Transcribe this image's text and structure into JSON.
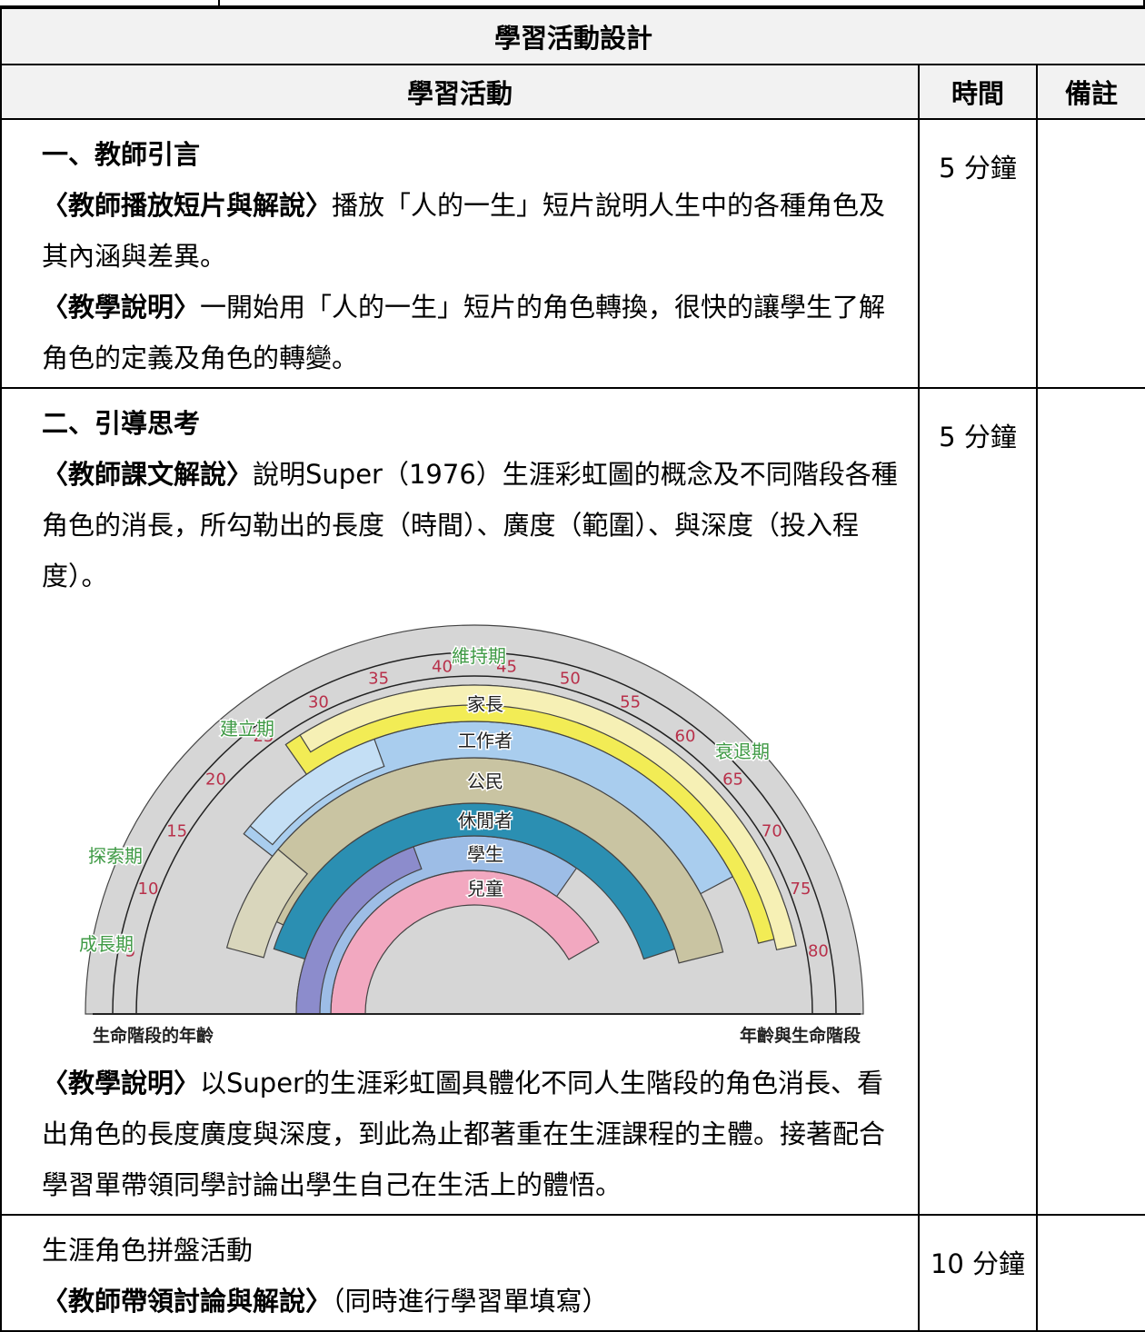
{
  "table": {
    "title": "學習活動設計",
    "headers": [
      "學習活動",
      "時間",
      "備註"
    ],
    "rows": [
      {
        "content": [
          {
            "bold": "一、教師引言"
          },
          {
            "bold": "〈教師播放短片與解說〉",
            "text": "播放「人的一生」短片說明人生中的各種角色及其內涵與差異。"
          },
          {
            "bold": "〈教學說明〉",
            "text": "一開始用「人的一生」短片的角色轉換，很快的讓學生了解角色的定義及角色的轉變。"
          }
        ],
        "time": "5 分鐘"
      },
      {
        "content": [
          {
            "bold": "二、引導思考"
          },
          {
            "bold": "〈教師課文解說〉",
            "text": "說明Super（1976）生涯彩虹圖的概念及不同階段各種角色的消長，所勾勒出的長度（時間）、廣度（範圍）、與深度（投入程度）。"
          },
          {
            "diagram": {
              "periods": [
                "成長期",
                "探索期",
                "建立期",
                "維持期",
                "衰退期"
              ],
              "roles": [
                "兒童",
                "學生",
                "休閒者",
                "公民",
                "工作者",
                "家長"
              ],
              "ages": [
                5,
                10,
                15,
                20,
                25,
                30,
                35,
                40,
                45,
                50,
                55,
                60,
                65,
                70,
                75,
                80
              ],
              "axis_left": "生命階段的年齡",
              "axis_right": "年齡與生命階段"
            }
          },
          {
            "bold": "〈教學說明〉",
            "text": "以Super的生涯彩虹圖具體化不同人生階段的角色消長、看出角色的長度廣度與深度，到此為止都著重在生涯課程的主體。接著配合學習單帶領同學討論出學生自己在生活上的體悟。"
          }
        ],
        "time": "5 分鐘"
      },
      {
        "content": [
          {
            "text": "生涯角色拼盤活動"
          },
          {
            "bold": "〈教師帶領討論與解說〉",
            "text": "（同時進行學習單填寫）"
          }
        ],
        "time": "10 分鐘"
      }
    ]
  }
}
